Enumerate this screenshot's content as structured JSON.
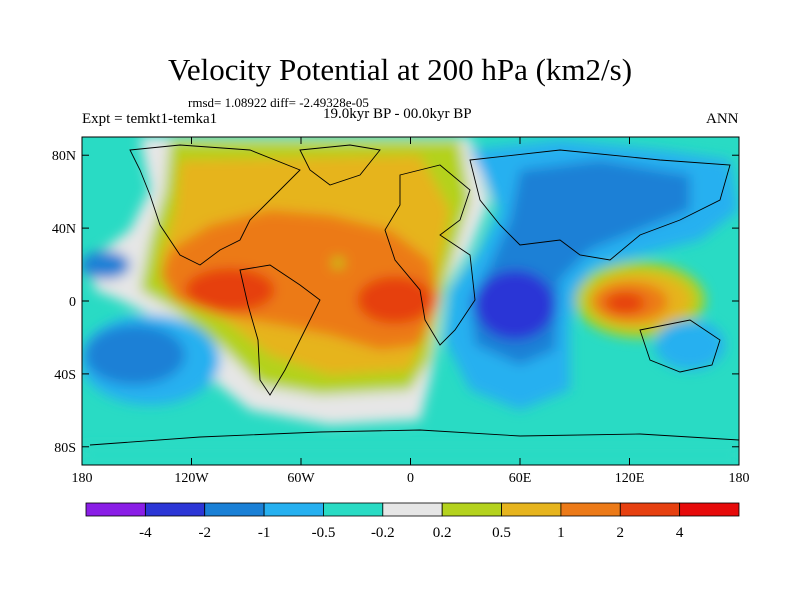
{
  "title": "Velocity Potential at 200 hPa (km2/s)",
  "stats": "rmsd= 1.08922 diff= -2.49328e-05",
  "experiment": "Expt = temkt1-temka1",
  "period": "19.0kyr BP - 00.0kyr BP",
  "season": "ANN",
  "map": {
    "lon_range": [
      -180,
      180
    ],
    "lat_range": [
      -90,
      90
    ],
    "lon_ticks": [
      {
        "value": -180,
        "label": "180"
      },
      {
        "value": -120,
        "label": "120W"
      },
      {
        "value": -60,
        "label": "60W"
      },
      {
        "value": 0,
        "label": "0"
      },
      {
        "value": 60,
        "label": "60E"
      },
      {
        "value": 120,
        "label": "120E"
      },
      {
        "value": 180,
        "label": "180"
      }
    ],
    "lat_ticks": [
      {
        "value": 80,
        "label": "80N"
      },
      {
        "value": 40,
        "label": "40N"
      },
      {
        "value": 0,
        "label": "0"
      },
      {
        "value": -40,
        "label": "40S"
      },
      {
        "value": -80,
        "label": "80S"
      }
    ],
    "anomaly_centers": [
      {
        "name": "americas-positive",
        "lon": -115,
        "lat": 5,
        "value": 3
      },
      {
        "name": "atlantic-positive",
        "lon": -10,
        "lat": 0,
        "value": 2.5
      },
      {
        "name": "north-atlantic-positive",
        "lon": -60,
        "lat": 55,
        "value": 1
      },
      {
        "name": "maritime-continent-positive",
        "lon": 130,
        "lat": -5,
        "value": 3
      },
      {
        "name": "indian-ocean-negative",
        "lon": 55,
        "lat": -5,
        "value": -3
      },
      {
        "name": "asia-negative",
        "lon": 90,
        "lat": 45,
        "value": -1
      },
      {
        "name": "south-pacific-negative",
        "lon": -150,
        "lat": -30,
        "value": -1
      },
      {
        "name": "north-pacific-negative",
        "lon": -165,
        "lat": 20,
        "value": -1
      }
    ]
  },
  "colorbar": {
    "labels": [
      "-4",
      "-2",
      "-1",
      "-0.5",
      "-0.2",
      "0.2",
      "0.5",
      "1",
      "2",
      "4"
    ],
    "colors": [
      "#8a1ee6",
      "#2c36d6",
      "#1a80d6",
      "#26b0f0",
      "#29dbc4",
      "#e6e6e6",
      "#b4d21e",
      "#e6b41e",
      "#ec7a18",
      "#e64010",
      "#e60a0a"
    ]
  }
}
